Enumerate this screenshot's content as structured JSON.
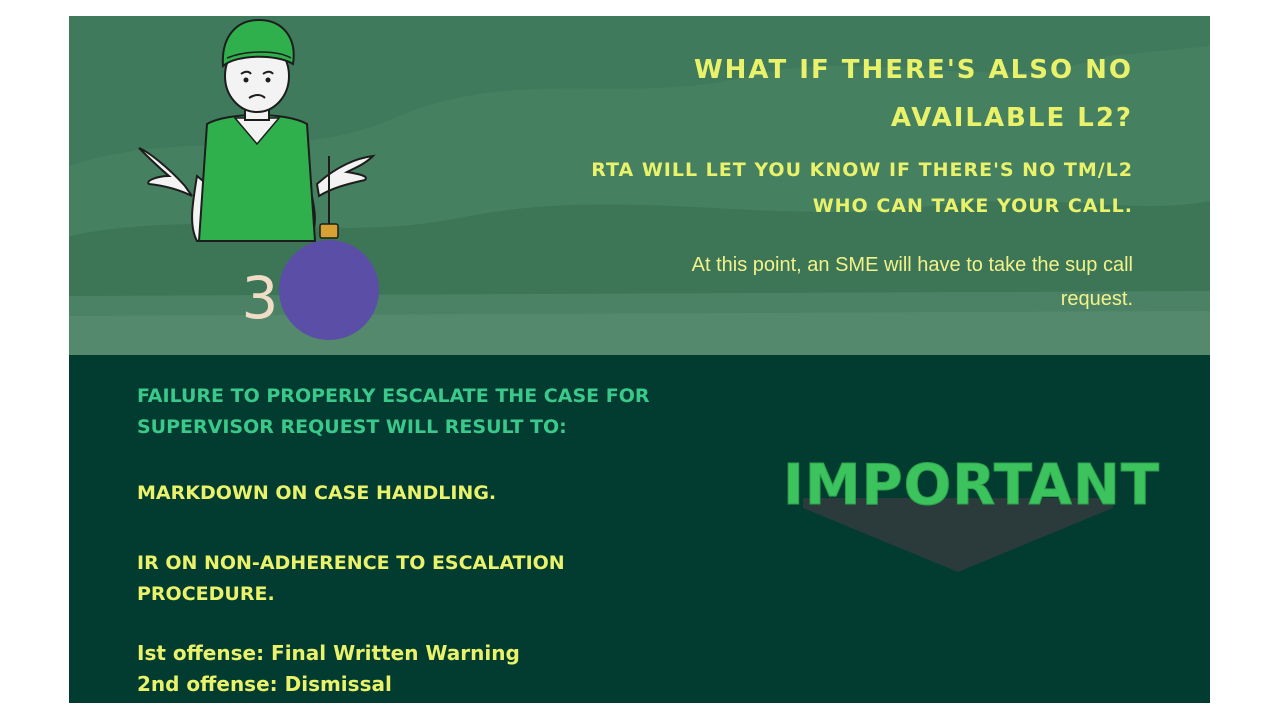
{
  "top_section": {
    "heading_line1": "WHAT IF THERE'S ALSO NO",
    "heading_line2": "AVAILABLE L2?",
    "subheading_line1": "RTA WILL LET YOU KNOW IF THERE'S NO TM/L2",
    "subheading_line2": "WHO CAN TAKE YOUR CALL.",
    "note_line1": "At this point, an SME will have to take the sup call",
    "note_line2": "request.",
    "ornament_number": "3"
  },
  "bottom_section": {
    "warning_title_line1": "FAILURE TO PROPERLY ESCALATE THE CASE FOR",
    "warning_title_line2": "SUPERVISOR REQUEST WILL RESULT TO:",
    "consequence_1": "MARKDOWN ON CASE HANDLING.",
    "consequence_2_line1": "IR ON NON-ADHERENCE TO ESCALATION",
    "consequence_2_line2": "PROCEDURE.",
    "offense_1": "Ist offense: Final Written Warning",
    "offense_2": "2nd offense: Dismissal",
    "badge_label": "IMPORTANT"
  },
  "colors": {
    "top_bg": "#3f7a5c",
    "bottom_bg": "#023c30",
    "heading_yellow": "#e9f26a",
    "warning_green": "#3bc98b",
    "badge_green": "#3cc35e",
    "badge_shadow": "#2b3a3b",
    "ornament_purple": "#5a4ea6"
  }
}
